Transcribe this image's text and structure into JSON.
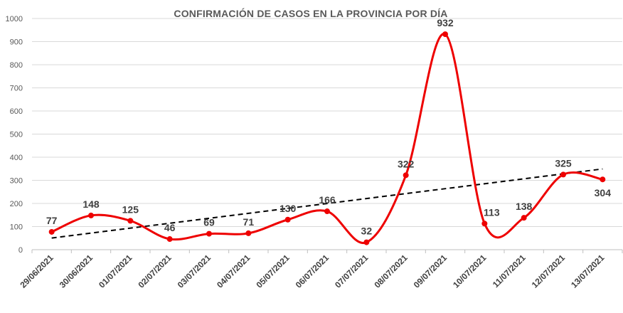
{
  "chart_data": {
    "type": "line",
    "title": "CONFIRMACIÓN DE CASOS EN LA PROVINCIA POR DÍA",
    "categories": [
      "29/06/2021",
      "30/06/2021",
      "01/07/2021",
      "02/07/2021",
      "03/07/2021",
      "04/07/2021",
      "05/07/2021",
      "06/07/2021",
      "07/07/2021",
      "08/07/2021",
      "09/07/2021",
      "10/07/2021",
      "11/07/2021",
      "12/07/2021",
      "13/07/2021"
    ],
    "series": [
      {
        "values": [
          77,
          148,
          125,
          46,
          69,
          71,
          130,
          166,
          32,
          322,
          932,
          113,
          138,
          325,
          304
        ],
        "color": "#ee0000",
        "smoothed": true,
        "markers": true
      }
    ],
    "trendline": {
      "type": "linear",
      "style": "dashed",
      "color": "#000000"
    },
    "xlabel": "",
    "ylabel": "",
    "ylim": [
      0,
      1000
    ],
    "yticks": [
      0,
      100,
      200,
      300,
      400,
      500,
      600,
      700,
      800,
      900,
      1000
    ],
    "grid": true,
    "legend": "none",
    "data_labels": true
  }
}
